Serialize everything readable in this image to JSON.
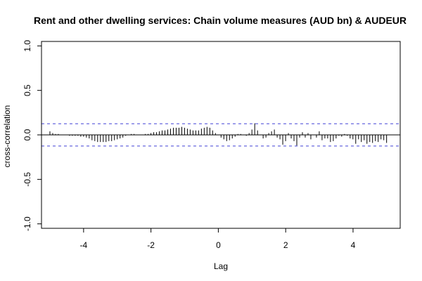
{
  "chart_data": {
    "type": "bar",
    "title": "Rent and other dwelling services: Chain volume measures (AUD bn) & AUDEUR",
    "xlabel": "Lag",
    "ylabel": "cross-correlation",
    "xlim": [
      -5.25,
      5.4
    ],
    "ylim": [
      -1.05,
      1.05
    ],
    "x_ticks": [
      -4,
      -2,
      0,
      2,
      4
    ],
    "x_tick_labels": [
      "-4",
      "-2",
      "0",
      "2",
      "4"
    ],
    "y_ticks": [
      -1.0,
      -0.5,
      0.0,
      0.5,
      1.0
    ],
    "y_tick_labels": [
      "-1.0",
      "-0.5",
      "0.0",
      "0.5",
      "1.0"
    ],
    "confidence_limits": [
      0.125,
      -0.125
    ],
    "lag_step": 0.0833,
    "lag_start": -5.0,
    "values": [
      0.04,
      0.02,
      0.01,
      0.01,
      0.0,
      0.0,
      0.0,
      -0.01,
      -0.01,
      -0.01,
      -0.01,
      -0.02,
      -0.02,
      -0.03,
      -0.04,
      -0.06,
      -0.07,
      -0.08,
      -0.08,
      -0.08,
      -0.08,
      -0.07,
      -0.07,
      -0.06,
      -0.05,
      -0.04,
      -0.03,
      -0.01,
      0.0,
      0.01,
      0.01,
      0.0,
      0.0,
      0.0,
      0.01,
      0.01,
      0.02,
      0.03,
      0.03,
      0.04,
      0.05,
      0.05,
      0.06,
      0.07,
      0.08,
      0.08,
      0.08,
      0.09,
      0.08,
      0.07,
      0.06,
      0.05,
      0.05,
      0.05,
      0.07,
      0.08,
      0.09,
      0.08,
      0.05,
      0.02,
      0.0,
      -0.03,
      -0.05,
      -0.07,
      -0.06,
      -0.04,
      -0.02,
      0.01,
      0.01,
      0.0,
      -0.01,
      0.02,
      0.06,
      0.13,
      0.05,
      0.0,
      -0.04,
      -0.03,
      0.02,
      0.04,
      0.06,
      -0.03,
      -0.05,
      -0.11,
      -0.07,
      0.02,
      -0.04,
      -0.07,
      -0.12,
      -0.03,
      0.03,
      -0.03,
      0.02,
      -0.05,
      0.0,
      -0.03,
      0.04,
      -0.06,
      -0.04,
      -0.04,
      -0.08,
      -0.07,
      -0.04,
      -0.01,
      -0.02,
      0.01,
      -0.01,
      -0.04,
      -0.05,
      -0.1,
      -0.05,
      -0.08,
      -0.06,
      -0.1,
      -0.08,
      -0.09,
      -0.07,
      -0.08,
      -0.05,
      -0.06,
      -0.09
    ]
  }
}
